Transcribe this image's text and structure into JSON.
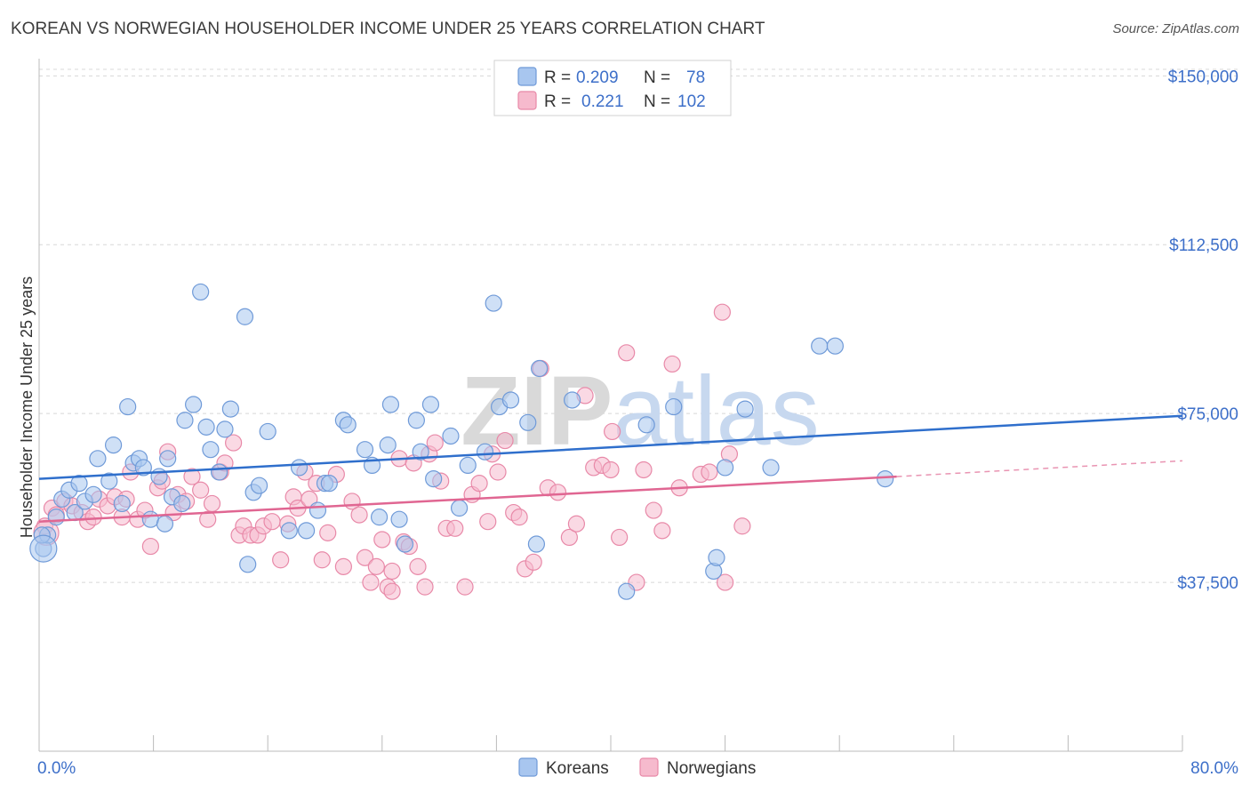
{
  "header": {
    "title": "KOREAN VS NORWEGIAN HOUSEHOLDER INCOME UNDER 25 YEARS CORRELATION CHART",
    "source": "Source: ZipAtlas.com"
  },
  "watermark": "ZIPatlas",
  "colors": {
    "koreans_fill": "#a8c6ef",
    "koreans_stroke": "#6f9ad8",
    "koreans_line": "#2f6fcc",
    "norwegians_fill": "#f6bacd",
    "norwegians_stroke": "#e889a8",
    "norwegians_line": "#e06692",
    "tick_label": "#3d6fc9",
    "grid": "#d8d8d8"
  },
  "legend": {
    "rows": [
      {
        "r_label": "R =",
        "r_value": "0.209",
        "n_label": "N =",
        "n_value": "78",
        "series": "Koreans"
      },
      {
        "r_label": "R =",
        "r_value": "0.221",
        "n_label": "N =",
        "n_value": "102",
        "series": "Norwegians"
      }
    ]
  },
  "chart_data": {
    "type": "scatter",
    "title": "KOREAN VS NORWEGIAN HOUSEHOLDER INCOME UNDER 25 YEARS CORRELATION CHART",
    "xlabel": "",
    "ylabel": "Householder Income Under 25 years",
    "xlim": [
      0,
      80
    ],
    "ylim": [
      0,
      155000
    ],
    "x_tick_labels": [
      "0.0%",
      "80.0%"
    ],
    "y_ticks": [
      37500,
      75000,
      112500,
      150000
    ],
    "y_tick_labels": [
      "$37,500",
      "$75,000",
      "$112,500",
      "$150,000"
    ],
    "grid": "horizontal dashed",
    "legend_position": "bottom-center",
    "series": [
      {
        "name": "Koreans",
        "trend": {
          "x": [
            0,
            80
          ],
          "y": [
            60500,
            74500
          ]
        },
        "points": [
          [
            0.3,
            45000
          ],
          [
            0.6,
            48000
          ],
          [
            1.2,
            52000
          ],
          [
            1.6,
            56000
          ],
          [
            2.1,
            58000
          ],
          [
            2.5,
            53000
          ],
          [
            2.8,
            59500
          ],
          [
            3.2,
            55500
          ],
          [
            3.8,
            57000
          ],
          [
            4.1,
            65000
          ],
          [
            4.9,
            60000
          ],
          [
            5.2,
            68000
          ],
          [
            5.8,
            55000
          ],
          [
            6.2,
            76500
          ],
          [
            6.6,
            64000
          ],
          [
            7.0,
            65000
          ],
          [
            7.3,
            63000
          ],
          [
            7.8,
            51500
          ],
          [
            8.4,
            61000
          ],
          [
            8.8,
            50500
          ],
          [
            9.0,
            65000
          ],
          [
            9.3,
            56500
          ],
          [
            10.0,
            55000
          ],
          [
            10.2,
            73500
          ],
          [
            10.8,
            77000
          ],
          [
            11.3,
            102000
          ],
          [
            11.7,
            72000
          ],
          [
            12.0,
            67000
          ],
          [
            12.6,
            62000
          ],
          [
            13.0,
            71500
          ],
          [
            13.4,
            76000
          ],
          [
            14.4,
            96500
          ],
          [
            14.6,
            41500
          ],
          [
            15.0,
            57500
          ],
          [
            15.4,
            59000
          ],
          [
            16.0,
            71000
          ],
          [
            17.5,
            49000
          ],
          [
            18.2,
            63000
          ],
          [
            18.7,
            49000
          ],
          [
            19.5,
            53500
          ],
          [
            20.0,
            59500
          ],
          [
            20.3,
            59500
          ],
          [
            21.3,
            73500
          ],
          [
            21.6,
            72500
          ],
          [
            22.8,
            67000
          ],
          [
            23.3,
            63500
          ],
          [
            23.8,
            52000
          ],
          [
            24.4,
            68000
          ],
          [
            24.6,
            77000
          ],
          [
            25.2,
            51500
          ],
          [
            25.6,
            46000
          ],
          [
            26.4,
            73500
          ],
          [
            26.7,
            66500
          ],
          [
            27.4,
            77000
          ],
          [
            27.6,
            60500
          ],
          [
            28.8,
            70000
          ],
          [
            29.4,
            54000
          ],
          [
            30.0,
            63500
          ],
          [
            31.2,
            66500
          ],
          [
            32.2,
            76500
          ],
          [
            33.0,
            78000
          ],
          [
            34.2,
            73000
          ],
          [
            34.8,
            46000
          ],
          [
            35.0,
            85000
          ],
          [
            37.3,
            78000
          ],
          [
            41.1,
            35500
          ],
          [
            42.5,
            72500
          ],
          [
            44.4,
            76500
          ],
          [
            47.2,
            40000
          ],
          [
            48.0,
            63000
          ],
          [
            47.4,
            43000
          ],
          [
            49.4,
            76000
          ],
          [
            51.2,
            63000
          ],
          [
            54.6,
            90000
          ],
          [
            55.7,
            90000
          ],
          [
            59.2,
            60500
          ],
          [
            0.2,
            48000
          ],
          [
            31.8,
            99500
          ]
        ]
      },
      {
        "name": "Norwegians",
        "trend": {
          "x": [
            0,
            60
          ],
          "y": [
            51000,
            61000
          ]
        },
        "trend_dashed": {
          "x": [
            60,
            80
          ],
          "y": [
            61000,
            64500
          ]
        },
        "points": [
          [
            0.4,
            50000
          ],
          [
            0.9,
            54000
          ],
          [
            1.2,
            52500
          ],
          [
            1.8,
            55500
          ],
          [
            2.3,
            54500
          ],
          [
            3.0,
            53000
          ],
          [
            3.4,
            51000
          ],
          [
            3.8,
            52000
          ],
          [
            4.2,
            56000
          ],
          [
            4.8,
            54500
          ],
          [
            5.3,
            56500
          ],
          [
            5.8,
            52000
          ],
          [
            6.1,
            56000
          ],
          [
            6.4,
            62000
          ],
          [
            6.9,
            51500
          ],
          [
            7.4,
            53500
          ],
          [
            7.8,
            45500
          ],
          [
            8.3,
            58500
          ],
          [
            8.6,
            60000
          ],
          [
            9.0,
            66500
          ],
          [
            9.4,
            53000
          ],
          [
            9.7,
            57000
          ],
          [
            10.3,
            55500
          ],
          [
            10.7,
            61000
          ],
          [
            11.3,
            58000
          ],
          [
            11.8,
            51500
          ],
          [
            12.1,
            55000
          ],
          [
            12.7,
            62000
          ],
          [
            13.0,
            64000
          ],
          [
            13.6,
            68500
          ],
          [
            14.0,
            48000
          ],
          [
            14.3,
            50000
          ],
          [
            14.8,
            48000
          ],
          [
            15.3,
            48000
          ],
          [
            15.7,
            50000
          ],
          [
            16.3,
            51000
          ],
          [
            16.9,
            42500
          ],
          [
            17.4,
            50500
          ],
          [
            17.8,
            56500
          ],
          [
            18.1,
            54000
          ],
          [
            18.6,
            62000
          ],
          [
            18.9,
            56000
          ],
          [
            19.4,
            59500
          ],
          [
            19.8,
            42500
          ],
          [
            20.2,
            48500
          ],
          [
            20.8,
            61500
          ],
          [
            21.3,
            41000
          ],
          [
            21.9,
            55500
          ],
          [
            22.4,
            52500
          ],
          [
            22.8,
            43000
          ],
          [
            23.2,
            37500
          ],
          [
            23.6,
            41000
          ],
          [
            24.0,
            47000
          ],
          [
            24.4,
            36500
          ],
          [
            24.7,
            40000
          ],
          [
            25.2,
            65000
          ],
          [
            25.5,
            46500
          ],
          [
            25.9,
            45500
          ],
          [
            26.2,
            64000
          ],
          [
            26.5,
            41000
          ],
          [
            27.0,
            36500
          ],
          [
            27.3,
            66000
          ],
          [
            27.7,
            68500
          ],
          [
            28.1,
            60000
          ],
          [
            28.5,
            49500
          ],
          [
            29.1,
            49500
          ],
          [
            29.8,
            36500
          ],
          [
            30.3,
            57000
          ],
          [
            30.8,
            59500
          ],
          [
            31.4,
            51000
          ],
          [
            31.7,
            66000
          ],
          [
            32.1,
            62000
          ],
          [
            32.6,
            69000
          ],
          [
            33.2,
            53000
          ],
          [
            33.6,
            52000
          ],
          [
            34.0,
            40500
          ],
          [
            34.6,
            42000
          ],
          [
            35.1,
            85000
          ],
          [
            35.6,
            58500
          ],
          [
            36.3,
            57500
          ],
          [
            37.1,
            47500
          ],
          [
            37.6,
            50500
          ],
          [
            38.2,
            79000
          ],
          [
            38.8,
            63000
          ],
          [
            39.4,
            63500
          ],
          [
            40.1,
            71000
          ],
          [
            40.6,
            47500
          ],
          [
            41.1,
            88500
          ],
          [
            41.8,
            37500
          ],
          [
            42.3,
            62500
          ],
          [
            43.0,
            53500
          ],
          [
            43.6,
            49000
          ],
          [
            44.3,
            86000
          ],
          [
            44.8,
            58500
          ],
          [
            46.3,
            61500
          ],
          [
            46.9,
            62000
          ],
          [
            48.0,
            37500
          ],
          [
            48.3,
            66000
          ],
          [
            49.2,
            50000
          ],
          [
            47.8,
            97500
          ],
          [
            40.0,
            62500
          ],
          [
            24.7,
            35500
          ]
        ]
      }
    ]
  }
}
